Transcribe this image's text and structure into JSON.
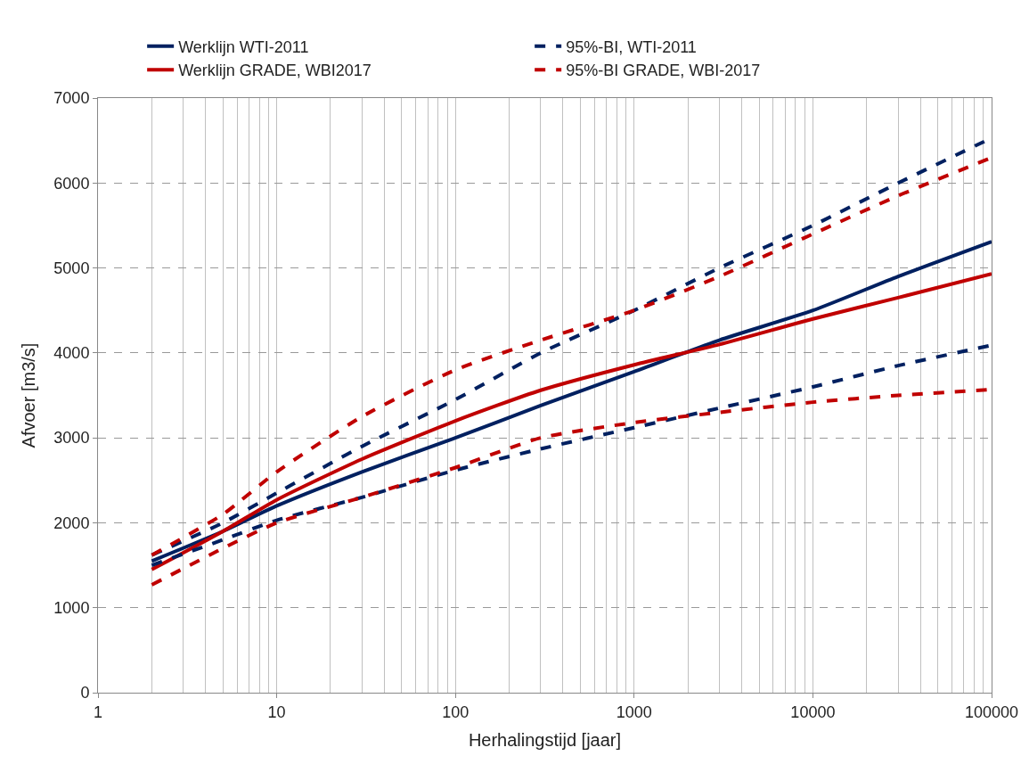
{
  "chart_data": {
    "type": "line",
    "xlabel": "Herhalingstijd [jaar]",
    "ylabel": "Afvoer [m3/s]",
    "log": "x",
    "xlim": [
      1,
      100000
    ],
    "xticks": [
      1,
      10,
      100,
      1000,
      10000,
      100000
    ],
    "ylim": [
      0,
      7000
    ],
    "yticks": [
      0,
      1000,
      2000,
      3000,
      4000,
      5000,
      6000,
      7000
    ],
    "grid": true,
    "legend": "top",
    "marker": "none",
    "x": [
      2,
      5,
      10,
      30,
      100,
      300,
      1000,
      3000,
      10000,
      30000,
      100000
    ],
    "series": [
      {
        "name": "Werklijn WTI-2011",
        "color": "#002060",
        "line_style": "solid",
        "values": [
          1550,
          1900,
          2200,
          2600,
          3000,
          3380,
          3780,
          4150,
          4500,
          4900,
          5310
        ]
      },
      {
        "name": "95%-BI, WTI-2011",
        "color": "#002060",
        "line_style": "dashed",
        "values": [
          1620,
          2000,
          2350,
          2900,
          3450,
          4000,
          4500,
          5000,
          5500,
          6000,
          6530
        ]
      },
      {
        "name": "Werklijn GRADE, WBI2017",
        "color": "#c00000",
        "line_style": "solid",
        "values": [
          1450,
          1900,
          2270,
          2750,
          3200,
          3560,
          3860,
          4100,
          4400,
          4650,
          4930
        ]
      },
      {
        "name": "95%-BI GRADE, WBI-2017",
        "color": "#c00000",
        "line_style": "dashed",
        "values": [
          1620,
          2100,
          2600,
          3250,
          3800,
          4150,
          4500,
          4900,
          5400,
          5850,
          6300
        ]
      },
      {
        "color": "#002060",
        "line_style": "dashed",
        "values": [
          1500,
          1800,
          2030,
          2300,
          2620,
          2870,
          3120,
          3350,
          3600,
          3850,
          4090
        ]
      },
      {
        "color": "#c00000",
        "line_style": "dashed",
        "values": [
          1270,
          1700,
          2000,
          2300,
          2650,
          3000,
          3180,
          3300,
          3420,
          3500,
          3570
        ]
      }
    ]
  }
}
